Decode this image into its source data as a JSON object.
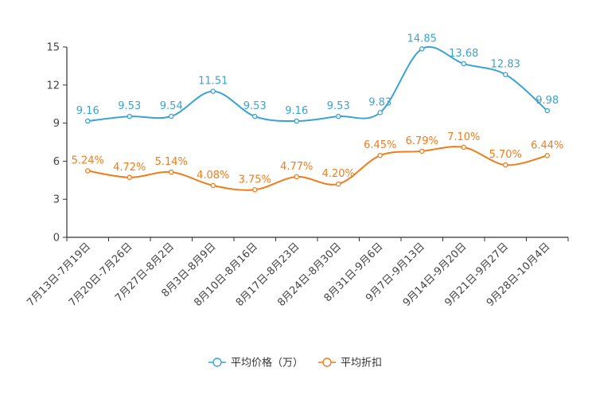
{
  "chart_data": {
    "type": "line",
    "categories": [
      "7月13日-7月19日",
      "7月20日-7月26日",
      "7月27日-8月2日",
      "8月3日-8月9日",
      "8月10日-8月16日",
      "8月17日-8月23日",
      "8月24日-8月30日",
      "8月31日-9月6日",
      "9月7日-9月13日",
      "9月14日-9月20日",
      "9月21日-9月27日",
      "9月28日-10月4日"
    ],
    "ylim": [
      0,
      15
    ],
    "yticks": [
      "0",
      "3",
      "6",
      "9",
      "12",
      "15"
    ],
    "series": [
      {
        "name": "平均价格（万）",
        "color": "#3aa3d4",
        "values": [
          9.16,
          9.53,
          9.54,
          11.51,
          9.53,
          9.16,
          9.53,
          9.83,
          14.85,
          13.68,
          12.83,
          9.98
        ],
        "labels": [
          "9.16",
          "9.53",
          "9.54",
          "11.51",
          "9.53",
          "9.16",
          "9.53",
          "9.83",
          "14.85",
          "13.68",
          "12.83",
          "9.98"
        ]
      },
      {
        "name": "平均折扣",
        "color": "#f07c1a",
        "values": [
          5.24,
          4.72,
          5.14,
          4.08,
          3.75,
          4.77,
          4.2,
          6.45,
          6.79,
          7.1,
          5.7,
          6.44
        ],
        "labels": [
          "5.24%",
          "4.72%",
          "5.14%",
          "4.08%",
          "3.75%",
          "4.77%",
          "4.20%",
          "6.45%",
          "6.79%",
          "7.10%",
          "5.70%",
          "6.44%"
        ]
      }
    ]
  }
}
